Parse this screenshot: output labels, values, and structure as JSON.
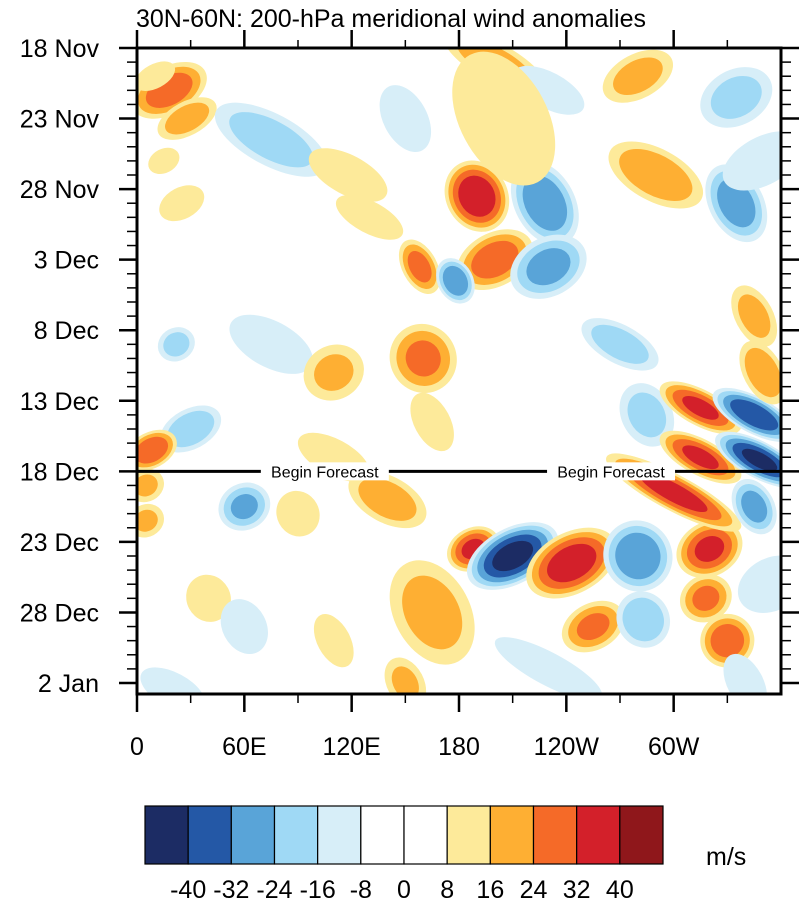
{
  "chart_data": {
    "type": "heatmap",
    "subtype": "filled-contour (Hovmoller)",
    "title": "30N-60N: 200-hPa meridional wind anomalies",
    "xlabel": "",
    "ylabel": "",
    "x_ticks": [
      {
        "value": 0,
        "label": "0"
      },
      {
        "value": 60,
        "label": "60E"
      },
      {
        "value": 120,
        "label": "120E"
      },
      {
        "value": 180,
        "label": "180"
      },
      {
        "value": 240,
        "label": "120W"
      },
      {
        "value": 300,
        "label": "60W"
      }
    ],
    "x_minor_ticks": [
      30,
      90,
      150,
      210,
      270,
      330
    ],
    "xlim": [
      0,
      360
    ],
    "y_ticks": [
      {
        "day": 0,
        "label": "18 Nov"
      },
      {
        "day": 5,
        "label": "23 Nov"
      },
      {
        "day": 10,
        "label": "28 Nov"
      },
      {
        "day": 15,
        "label": "3 Dec"
      },
      {
        "day": 20,
        "label": "8 Dec"
      },
      {
        "day": 25,
        "label": "13 Dec"
      },
      {
        "day": 30,
        "label": "18 Dec"
      },
      {
        "day": 35,
        "label": "23 Dec"
      },
      {
        "day": 40,
        "label": "28 Dec"
      },
      {
        "day": 45,
        "label": "2 Jan"
      }
    ],
    "ylim_days": [
      0,
      46
    ],
    "y_direction": "time increases downward",
    "forecast_start": {
      "day": 30,
      "label": "18 Dec",
      "annotation": "Begin Forecast"
    },
    "colorbar": {
      "units": "m/s",
      "levels": [
        -40,
        -32,
        -24,
        -16,
        -8,
        0,
        8,
        16,
        24,
        32,
        40
      ],
      "level_labels": [
        "-40",
        "-32",
        "-24",
        "-16",
        "-8",
        "0",
        "8",
        "16",
        "24",
        "32",
        "40"
      ],
      "colors": [
        "#1c2c64",
        "#2458a6",
        "#59a4d8",
        "#9fd9f5",
        "#d7eef8",
        "#ffffff",
        "#ffffff",
        "#fdea9a",
        "#feaf33",
        "#f56a28",
        "#d3202a",
        "#8f171b"
      ],
      "placement": "bottom"
    },
    "features": [
      {
        "lon": 18,
        "day": 3,
        "dlon": 8,
        "dday": 3,
        "value": 28
      },
      {
        "lon": 28,
        "day": 5,
        "dlon": 6,
        "dday": 2.5,
        "value": 20
      },
      {
        "lon": 75,
        "day": 6.5,
        "dlon": 22,
        "dday": 2,
        "value": -20
      },
      {
        "lon": 25,
        "day": 11,
        "dlon": 6,
        "dday": 2,
        "value": 14
      },
      {
        "lon": 10,
        "day": 2,
        "dlon": 5,
        "dday": 2,
        "value": 10
      },
      {
        "lon": 15,
        "day": 8,
        "dlon": 5,
        "dday": 1.5,
        "value": 10
      },
      {
        "lon": 118,
        "day": 9,
        "dlon": 18,
        "dday": 1.8,
        "value": 10
      },
      {
        "lon": 150,
        "day": 5,
        "dlon": 15,
        "dday": 2,
        "value": -10
      },
      {
        "lon": 130,
        "day": 12,
        "dlon": 16,
        "dday": 1.5,
        "value": 9
      },
      {
        "lon": 190,
        "day": 10.5,
        "dlon": 12,
        "dday": 2.2,
        "value": 38
      },
      {
        "lon": 228,
        "day": 11,
        "dlon": 15,
        "dday": 2.2,
        "value": -30
      },
      {
        "lon": 200,
        "day": 15,
        "dlon": 9,
        "dday": 3,
        "value": 28
      },
      {
        "lon": 230,
        "day": 15.5,
        "dlon": 10,
        "dday": 3,
        "value": -26
      },
      {
        "lon": 158,
        "day": 15.5,
        "dlon": 10,
        "dday": 1.3,
        "value": 26
      },
      {
        "lon": 178,
        "day": 16.5,
        "dlon": 8,
        "dday": 1.3,
        "value": -30
      },
      {
        "lon": 200,
        "day": 1,
        "dlon": 20,
        "dday": 1.5,
        "value": 20
      },
      {
        "lon": 230,
        "day": 3,
        "dlon": 15,
        "dday": 1.5,
        "value": -14
      },
      {
        "lon": 205,
        "day": 5,
        "dlon": 30,
        "dday": 4,
        "value": 10
      },
      {
        "lon": 280,
        "day": 2,
        "dlon": 8,
        "dday": 3,
        "value": 18
      },
      {
        "lon": 290,
        "day": 9,
        "dlon": 18,
        "dday": 2,
        "value": 22
      },
      {
        "lon": 335,
        "day": 11,
        "dlon": 14,
        "dday": 2,
        "value": -28
      },
      {
        "lon": 335,
        "day": 3.5,
        "dlon": 10,
        "dday": 3,
        "value": -18
      },
      {
        "lon": 350,
        "day": 8,
        "dlon": 10,
        "dday": 4,
        "value": -10
      },
      {
        "lon": 22,
        "day": 21,
        "dlon": 6,
        "dday": 1.5,
        "value": -18
      },
      {
        "lon": 30,
        "day": 27,
        "dlon": 7,
        "dday": 2.5,
        "value": -22
      },
      {
        "lon": 8,
        "day": 28.5,
        "dlon": 6,
        "dday": 2,
        "value": 30
      },
      {
        "lon": 75,
        "day": 21,
        "dlon": 18,
        "dday": 2,
        "value": -12
      },
      {
        "lon": 110,
        "day": 23,
        "dlon": 10,
        "dday": 2.5,
        "value": 16
      },
      {
        "lon": 160,
        "day": 22,
        "dlon": 12,
        "dday": 2.5,
        "value": 24
      },
      {
        "lon": 165,
        "day": 26.5,
        "dlon": 12,
        "dday": 1.5,
        "value": 14
      },
      {
        "lon": 110,
        "day": 29,
        "dlon": 15,
        "dday": 1.5,
        "value": 14
      },
      {
        "lon": 270,
        "day": 21,
        "dlon": 15,
        "dday": 1.5,
        "value": -20
      },
      {
        "lon": 285,
        "day": 26,
        "dlon": 12,
        "dday": 2,
        "value": -18
      },
      {
        "lon": 315,
        "day": 25.5,
        "dlon": 15,
        "dday": 1.3,
        "value": 32
      },
      {
        "lon": 345,
        "day": 26,
        "dlon": 15,
        "dday": 1.3,
        "value": -38
      },
      {
        "lon": 315,
        "day": 29,
        "dlon": 15,
        "dday": 1.3,
        "value": 32
      },
      {
        "lon": 348,
        "day": 29.2,
        "dlon": 16,
        "dday": 1.3,
        "value": -40
      },
      {
        "lon": 350,
        "day": 23,
        "dlon": 12,
        "dday": 1.5,
        "value": 22
      },
      {
        "lon": 345,
        "day": 19,
        "dlon": 12,
        "dday": 1.5,
        "value": 18
      },
      {
        "lon": 5,
        "day": 31,
        "dlon": 6,
        "dday": 1.5,
        "value": 16
      },
      {
        "lon": 5,
        "day": 33.5,
        "dlon": 6,
        "dday": 1.5,
        "value": 16
      },
      {
        "lon": 60,
        "day": 32.5,
        "dlon": 8,
        "dday": 2,
        "value": -24
      },
      {
        "lon": 90,
        "day": 33,
        "dlon": 10,
        "dday": 2,
        "value": 9
      },
      {
        "lon": 140,
        "day": 32,
        "dlon": 15,
        "dday": 1.8,
        "value": 20
      },
      {
        "lon": 165,
        "day": 40,
        "dlon": 20,
        "dday": 3,
        "value": 18
      },
      {
        "lon": 188,
        "day": 35.5,
        "dlon": 7,
        "dday": 2,
        "value": 32
      },
      {
        "lon": 210,
        "day": 36,
        "dlon": 9,
        "dday": 3.5,
        "value": -42
      },
      {
        "lon": 243,
        "day": 36.5,
        "dlon": 10,
        "dday": 3.5,
        "value": 36
      },
      {
        "lon": 255,
        "day": 41,
        "dlon": 8,
        "dday": 2.5,
        "value": 24
      },
      {
        "lon": 280,
        "day": 36,
        "dlon": 12,
        "dday": 2.5,
        "value": -30
      },
      {
        "lon": 283,
        "day": 40.5,
        "dlon": 10,
        "dday": 2,
        "value": -22
      },
      {
        "lon": 320,
        "day": 35.5,
        "dlon": 9,
        "dday": 2.5,
        "value": 32
      },
      {
        "lon": 318,
        "day": 39,
        "dlon": 8,
        "dday": 2,
        "value": 24
      },
      {
        "lon": 330,
        "day": 42,
        "dlon": 9,
        "dday": 2,
        "value": 28
      },
      {
        "lon": 300,
        "day": 31.5,
        "dlon": 25,
        "dday": 1.3,
        "value": 34
      },
      {
        "lon": 345,
        "day": 32.5,
        "dlon": 10,
        "dday": 1.5,
        "value": -26
      },
      {
        "lon": 355,
        "day": 38,
        "dlon": 10,
        "dday": 3,
        "value": -14
      },
      {
        "lon": 150,
        "day": 45,
        "dlon": 10,
        "dday": 1.5,
        "value": 16
      },
      {
        "lon": 110,
        "day": 42,
        "dlon": 12,
        "dday": 1.5,
        "value": 10
      },
      {
        "lon": 20,
        "day": 45.5,
        "dlon": 14,
        "dday": 1.5,
        "value": -12
      },
      {
        "lon": 40,
        "day": 39,
        "dlon": 10,
        "dday": 2,
        "value": 10
      },
      {
        "lon": 60,
        "day": 41,
        "dlon": 12,
        "dday": 2,
        "value": -10
      },
      {
        "lon": 230,
        "day": 44,
        "dlon": 25,
        "dday": 1.5,
        "value": -10
      },
      {
        "lon": 340,
        "day": 45,
        "dlon": 12,
        "dday": 1.5,
        "value": -14
      }
    ]
  }
}
